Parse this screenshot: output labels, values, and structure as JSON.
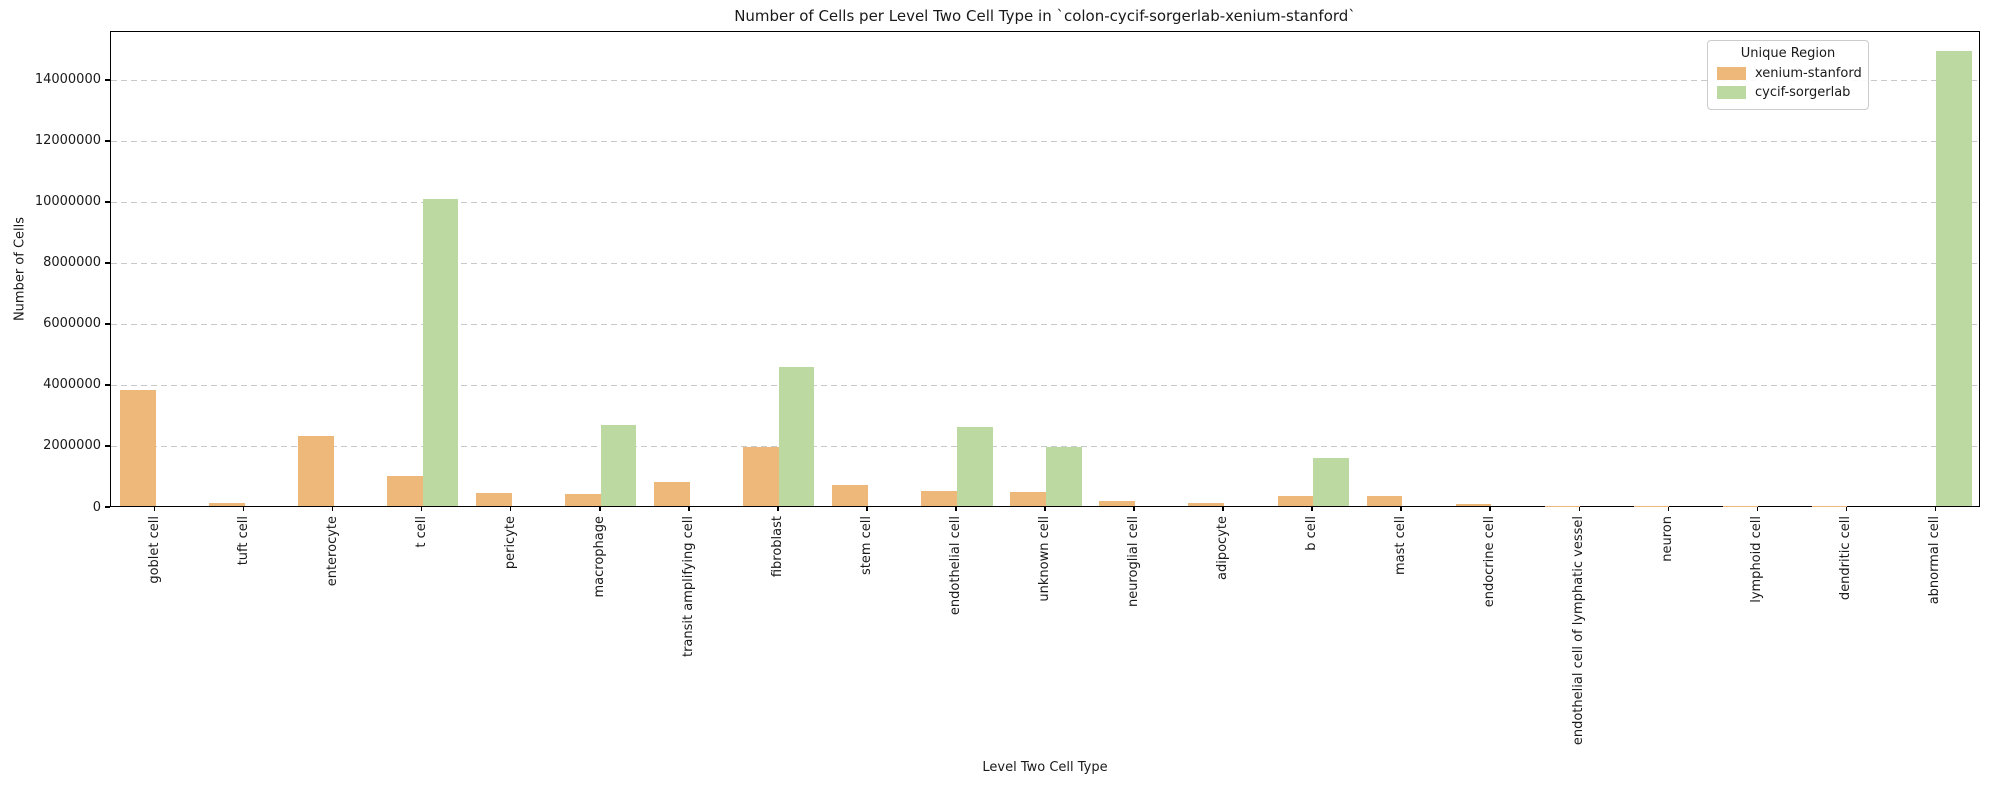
{
  "title": "Number of Cells per Level Two Cell Type in `colon-cycif-sorgerlab-xenium-stanford`",
  "legend": {
    "title": "Unique Region",
    "entries": [
      {
        "label": "xenium-stanford",
        "color": "#edb879"
      },
      {
        "label": "cycif-sorgerlab",
        "color": "#bdd9a2"
      }
    ]
  },
  "chart_data": {
    "type": "bar",
    "title": "Number of Cells per Level Two Cell Type in `colon-cycif-sorgerlab-xenium-stanford`",
    "xlabel": "Level Two Cell Type",
    "ylabel": "Number of Cells",
    "categories": [
      "goblet cell",
      "tuft cell",
      "enterocyte",
      "t cell",
      "pericyte",
      "macrophage",
      "transit amplifying cell",
      "fibroblast",
      "stem cell",
      "endothelial cell",
      "unknown cell",
      "neuroglial cell",
      "adipocyte",
      "b cell",
      "mast cell",
      "endocrine cell",
      "endothelial cell of lymphatic vessel",
      "neuron",
      "lymphoid cell",
      "dendritic cell",
      "abnormal cell"
    ],
    "series": [
      {
        "name": "xenium-stanford",
        "color": "#edb879",
        "values": [
          3800000,
          90000,
          2300000,
          1000000,
          430000,
          400000,
          780000,
          1920000,
          700000,
          500000,
          450000,
          150000,
          110000,
          340000,
          320000,
          70000,
          15000,
          10000,
          8000,
          5000,
          0
        ]
      },
      {
        "name": "cycif-sorgerlab",
        "color": "#bdd9a2",
        "values": [
          0,
          0,
          0,
          10050000,
          0,
          2670000,
          0,
          4570000,
          0,
          2600000,
          1930000,
          0,
          0,
          1570000,
          0,
          0,
          0,
          0,
          0,
          0,
          14900000
        ]
      }
    ],
    "ylim": [
      0,
      15600000
    ],
    "yticks": [
      0,
      2000000,
      4000000,
      6000000,
      8000000,
      10000000,
      12000000,
      14000000
    ],
    "grid": "horizontal dashed",
    "legend_title": "Unique Region",
    "legend_position": "upper right"
  }
}
